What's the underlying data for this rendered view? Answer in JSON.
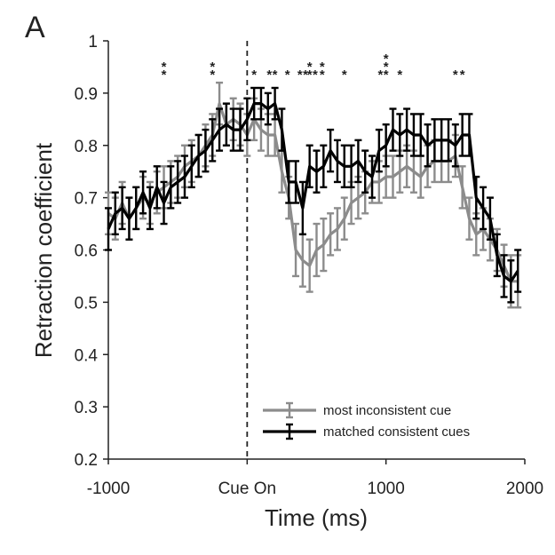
{
  "panel_label": "A",
  "chart_data": {
    "type": "line",
    "xlabel": "Time (ms)",
    "ylabel": "Retraction coefficient",
    "xlim": [
      -1000,
      2000
    ],
    "ylim": [
      0.2,
      1.0
    ],
    "x_ticks": [
      {
        "value": -1000,
        "label": "-1000"
      },
      {
        "value": 0,
        "label": "Cue On"
      },
      {
        "value": 1000,
        "label": "1000"
      },
      {
        "value": 2000,
        "label": "2000"
      }
    ],
    "y_ticks": [
      {
        "value": 0.2,
        "label": "0.2"
      },
      {
        "value": 0.3,
        "label": "0.3"
      },
      {
        "value": 0.4,
        "label": "0.4"
      },
      {
        "value": 0.5,
        "label": "0.5"
      },
      {
        "value": 0.6,
        "label": "0.6"
      },
      {
        "value": 0.7,
        "label": "0.7"
      },
      {
        "value": 0.8,
        "label": "0.8"
      },
      {
        "value": 0.9,
        "label": "0.9"
      },
      {
        "value": 1.0,
        "label": "1"
      }
    ],
    "cue_line_x": 0,
    "legend_position": "bottom-right",
    "series": [
      {
        "name": "most inconsistent cue",
        "color": "#8c8c8c",
        "x": [
          -1000,
          -950,
          -900,
          -850,
          -800,
          -750,
          -700,
          -650,
          -600,
          -550,
          -500,
          -450,
          -400,
          -350,
          -300,
          -250,
          -200,
          -150,
          -100,
          -50,
          0,
          50,
          100,
          150,
          200,
          250,
          300,
          350,
          400,
          450,
          500,
          550,
          600,
          650,
          700,
          750,
          800,
          850,
          900,
          950,
          1000,
          1050,
          1100,
          1150,
          1200,
          1250,
          1300,
          1350,
          1400,
          1450,
          1500,
          1550,
          1600,
          1650,
          1700,
          1750,
          1800,
          1850,
          1900,
          1950
        ],
        "y": [
          0.67,
          0.66,
          0.69,
          0.66,
          0.68,
          0.7,
          0.69,
          0.71,
          0.72,
          0.73,
          0.74,
          0.76,
          0.77,
          0.78,
          0.8,
          0.82,
          0.88,
          0.84,
          0.85,
          0.84,
          0.82,
          0.85,
          0.83,
          0.82,
          0.82,
          0.75,
          0.7,
          0.6,
          0.58,
          0.57,
          0.6,
          0.61,
          0.63,
          0.64,
          0.66,
          0.69,
          0.7,
          0.71,
          0.73,
          0.73,
          0.74,
          0.74,
          0.75,
          0.76,
          0.75,
          0.74,
          0.76,
          0.77,
          0.77,
          0.77,
          0.78,
          0.72,
          0.66,
          0.63,
          0.64,
          0.62,
          0.6,
          0.57,
          0.54,
          0.54
        ],
        "err": [
          0.04,
          0.04,
          0.04,
          0.04,
          0.04,
          0.04,
          0.04,
          0.04,
          0.04,
          0.04,
          0.04,
          0.04,
          0.04,
          0.04,
          0.04,
          0.04,
          0.04,
          0.04,
          0.04,
          0.04,
          0.04,
          0.04,
          0.04,
          0.04,
          0.04,
          0.04,
          0.04,
          0.05,
          0.05,
          0.05,
          0.05,
          0.05,
          0.04,
          0.04,
          0.04,
          0.04,
          0.04,
          0.04,
          0.04,
          0.04,
          0.04,
          0.04,
          0.04,
          0.04,
          0.04,
          0.04,
          0.04,
          0.04,
          0.04,
          0.04,
          0.04,
          0.04,
          0.04,
          0.04,
          0.04,
          0.04,
          0.04,
          0.04,
          0.05,
          0.05
        ]
      },
      {
        "name": "matched consistent cues",
        "color": "#000000",
        "x": [
          -1000,
          -950,
          -900,
          -850,
          -800,
          -750,
          -700,
          -650,
          -600,
          -550,
          -500,
          -450,
          -400,
          -350,
          -300,
          -250,
          -200,
          -150,
          -100,
          -50,
          0,
          50,
          100,
          150,
          200,
          250,
          300,
          350,
          400,
          450,
          500,
          550,
          600,
          650,
          700,
          750,
          800,
          850,
          900,
          950,
          1000,
          1050,
          1100,
          1150,
          1200,
          1250,
          1300,
          1350,
          1400,
          1450,
          1500,
          1550,
          1600,
          1650,
          1700,
          1750,
          1800,
          1850,
          1900,
          1950
        ],
        "y": [
          0.64,
          0.67,
          0.68,
          0.66,
          0.68,
          0.71,
          0.68,
          0.72,
          0.69,
          0.72,
          0.73,
          0.74,
          0.76,
          0.78,
          0.79,
          0.81,
          0.83,
          0.84,
          0.83,
          0.83,
          0.85,
          0.88,
          0.88,
          0.87,
          0.88,
          0.83,
          0.73,
          0.73,
          0.68,
          0.76,
          0.75,
          0.76,
          0.79,
          0.77,
          0.76,
          0.76,
          0.77,
          0.75,
          0.74,
          0.79,
          0.8,
          0.83,
          0.82,
          0.83,
          0.82,
          0.82,
          0.8,
          0.81,
          0.81,
          0.81,
          0.8,
          0.82,
          0.82,
          0.7,
          0.68,
          0.66,
          0.59,
          0.55,
          0.54,
          0.56
        ],
        "err": [
          0.04,
          0.04,
          0.04,
          0.04,
          0.04,
          0.04,
          0.04,
          0.04,
          0.04,
          0.04,
          0.04,
          0.04,
          0.04,
          0.04,
          0.04,
          0.04,
          0.04,
          0.04,
          0.04,
          0.04,
          0.04,
          0.03,
          0.03,
          0.03,
          0.03,
          0.04,
          0.04,
          0.04,
          0.05,
          0.04,
          0.04,
          0.04,
          0.04,
          0.04,
          0.04,
          0.04,
          0.04,
          0.04,
          0.04,
          0.04,
          0.04,
          0.04,
          0.04,
          0.04,
          0.04,
          0.04,
          0.04,
          0.04,
          0.04,
          0.04,
          0.04,
          0.04,
          0.04,
          0.04,
          0.04,
          0.04,
          0.04,
          0.04,
          0.04,
          0.04
        ]
      }
    ],
    "significance": [
      {
        "x": -600,
        "stars": 2
      },
      {
        "x": -250,
        "stars": 2
      },
      {
        "x": 50,
        "stars": 1
      },
      {
        "x": 160,
        "stars": 1
      },
      {
        "x": 200,
        "stars": 1
      },
      {
        "x": 290,
        "stars": 1
      },
      {
        "x": 380,
        "stars": 1
      },
      {
        "x": 420,
        "stars": 1
      },
      {
        "x": 450,
        "stars": 2
      },
      {
        "x": 490,
        "stars": 1
      },
      {
        "x": 540,
        "stars": 2
      },
      {
        "x": 700,
        "stars": 1
      },
      {
        "x": 960,
        "stars": 1
      },
      {
        "x": 1000,
        "stars": 3
      },
      {
        "x": 1100,
        "stars": 1
      },
      {
        "x": 1500,
        "stars": 1
      },
      {
        "x": 1550,
        "stars": 1
      }
    ]
  }
}
